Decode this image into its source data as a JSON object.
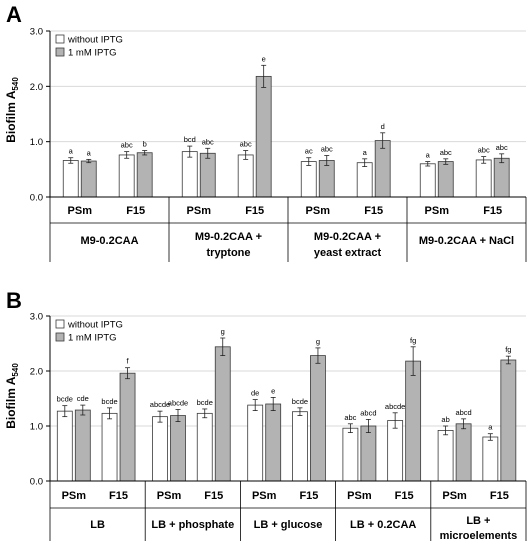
{
  "colors": {
    "without": "#ffffff",
    "with": "#b3b3b3",
    "stroke": "#3a3a3a",
    "grid": "#d9d9d9"
  },
  "chart_data": [
    {
      "type": "bar",
      "panel": "A",
      "ylabel": "Biofilm A",
      "ylabel_sub": "540",
      "ylim": [
        0,
        3.0
      ],
      "yticks": [
        "0.0",
        "1.0",
        "2.0",
        "3.0"
      ],
      "grid": true,
      "legend_position": "top-left",
      "series": [
        {
          "name": "without IPTG",
          "key": "without"
        },
        {
          "name": "1 mM IPTG",
          "key": "with"
        }
      ],
      "groups": [
        {
          "condition": [
            "M9-0.2CAA"
          ],
          "strains": [
            {
              "name": "PSm",
              "values": [
                0.66,
                0.65
              ],
              "errors": [
                0.05,
                0.03
              ],
              "letters": [
                "a",
                "a"
              ]
            },
            {
              "name": "F15",
              "values": [
                0.76,
                0.8
              ],
              "errors": [
                0.06,
                0.04
              ],
              "letters": [
                "abc",
                "b"
              ]
            }
          ]
        },
        {
          "condition": [
            "M9-0.2CAA +",
            "tryptone"
          ],
          "strains": [
            {
              "name": "PSm",
              "values": [
                0.82,
                0.79
              ],
              "errors": [
                0.1,
                0.09
              ],
              "letters": [
                "bcd",
                "abc"
              ]
            },
            {
              "name": "F15",
              "values": [
                0.76,
                2.18
              ],
              "errors": [
                0.08,
                0.2
              ],
              "letters": [
                "abc",
                "e"
              ]
            }
          ]
        },
        {
          "condition": [
            "M9-0.2CAA +",
            "yeast extract"
          ],
          "strains": [
            {
              "name": "PSm",
              "values": [
                0.64,
                0.66
              ],
              "errors": [
                0.07,
                0.09
              ],
              "letters": [
                "ac",
                "abc"
              ]
            },
            {
              "name": "F15",
              "values": [
                0.62,
                1.02
              ],
              "errors": [
                0.07,
                0.14
              ],
              "letters": [
                "a",
                "d"
              ]
            }
          ]
        },
        {
          "condition": [
            "M9-0.2CAA + NaCl"
          ],
          "strains": [
            {
              "name": "PSm",
              "values": [
                0.6,
                0.64
              ],
              "errors": [
                0.04,
                0.05
              ],
              "letters": [
                "a",
                "abc"
              ]
            },
            {
              "name": "F15",
              "values": [
                0.67,
                0.7
              ],
              "errors": [
                0.06,
                0.08
              ],
              "letters": [
                "abc",
                "abc"
              ]
            }
          ]
        }
      ]
    },
    {
      "type": "bar",
      "panel": "B",
      "ylabel": "Biofilm A",
      "ylabel_sub": "540",
      "ylim": [
        0,
        3.0
      ],
      "yticks": [
        "0.0",
        "1.0",
        "2.0",
        "3.0"
      ],
      "grid": true,
      "legend_position": "top-left",
      "series": [
        {
          "name": "without IPTG",
          "key": "without"
        },
        {
          "name": "1 mM IPTG",
          "key": "with"
        }
      ],
      "groups": [
        {
          "condition": [
            "LB"
          ],
          "strains": [
            {
              "name": "PSm",
              "values": [
                1.27,
                1.29
              ],
              "errors": [
                0.1,
                0.09
              ],
              "letters": [
                "bcde",
                "cde"
              ]
            },
            {
              "name": "F15",
              "values": [
                1.23,
                1.96
              ],
              "errors": [
                0.1,
                0.1
              ],
              "letters": [
                "bcde",
                "f"
              ]
            }
          ]
        },
        {
          "condition": [
            "LB + phosphate"
          ],
          "strains": [
            {
              "name": "PSm",
              "values": [
                1.17,
                1.19
              ],
              "errors": [
                0.1,
                0.11
              ],
              "letters": [
                "abcde",
                "abcde"
              ]
            },
            {
              "name": "F15",
              "values": [
                1.23,
                2.44
              ],
              "errors": [
                0.08,
                0.16
              ],
              "letters": [
                "bcde",
                "g"
              ]
            }
          ]
        },
        {
          "condition": [
            "LB + glucose"
          ],
          "strains": [
            {
              "name": "PSm",
              "values": [
                1.38,
                1.4
              ],
              "errors": [
                0.1,
                0.12
              ],
              "letters": [
                "de",
                "e"
              ]
            },
            {
              "name": "F15",
              "values": [
                1.26,
                2.28
              ],
              "errors": [
                0.07,
                0.14
              ],
              "letters": [
                "bcde",
                "g"
              ]
            }
          ]
        },
        {
          "condition": [
            "LB + 0.2CAA"
          ],
          "strains": [
            {
              "name": "PSm",
              "values": [
                0.96,
                1.0
              ],
              "errors": [
                0.08,
                0.12
              ],
              "letters": [
                "abc",
                "abcd"
              ]
            },
            {
              "name": "F15",
              "values": [
                1.1,
                2.18
              ],
              "errors": [
                0.14,
                0.26
              ],
              "letters": [
                "abcde",
                "fg"
              ]
            }
          ]
        },
        {
          "condition": [
            "LB +",
            "microelements"
          ],
          "strains": [
            {
              "name": "PSm",
              "values": [
                0.92,
                1.04
              ],
              "errors": [
                0.08,
                0.09
              ],
              "letters": [
                "ab",
                "abcd"
              ]
            },
            {
              "name": "F15",
              "values": [
                0.8,
                2.2
              ],
              "errors": [
                0.06,
                0.07
              ],
              "letters": [
                "a",
                "fg"
              ]
            }
          ]
        }
      ]
    }
  ]
}
